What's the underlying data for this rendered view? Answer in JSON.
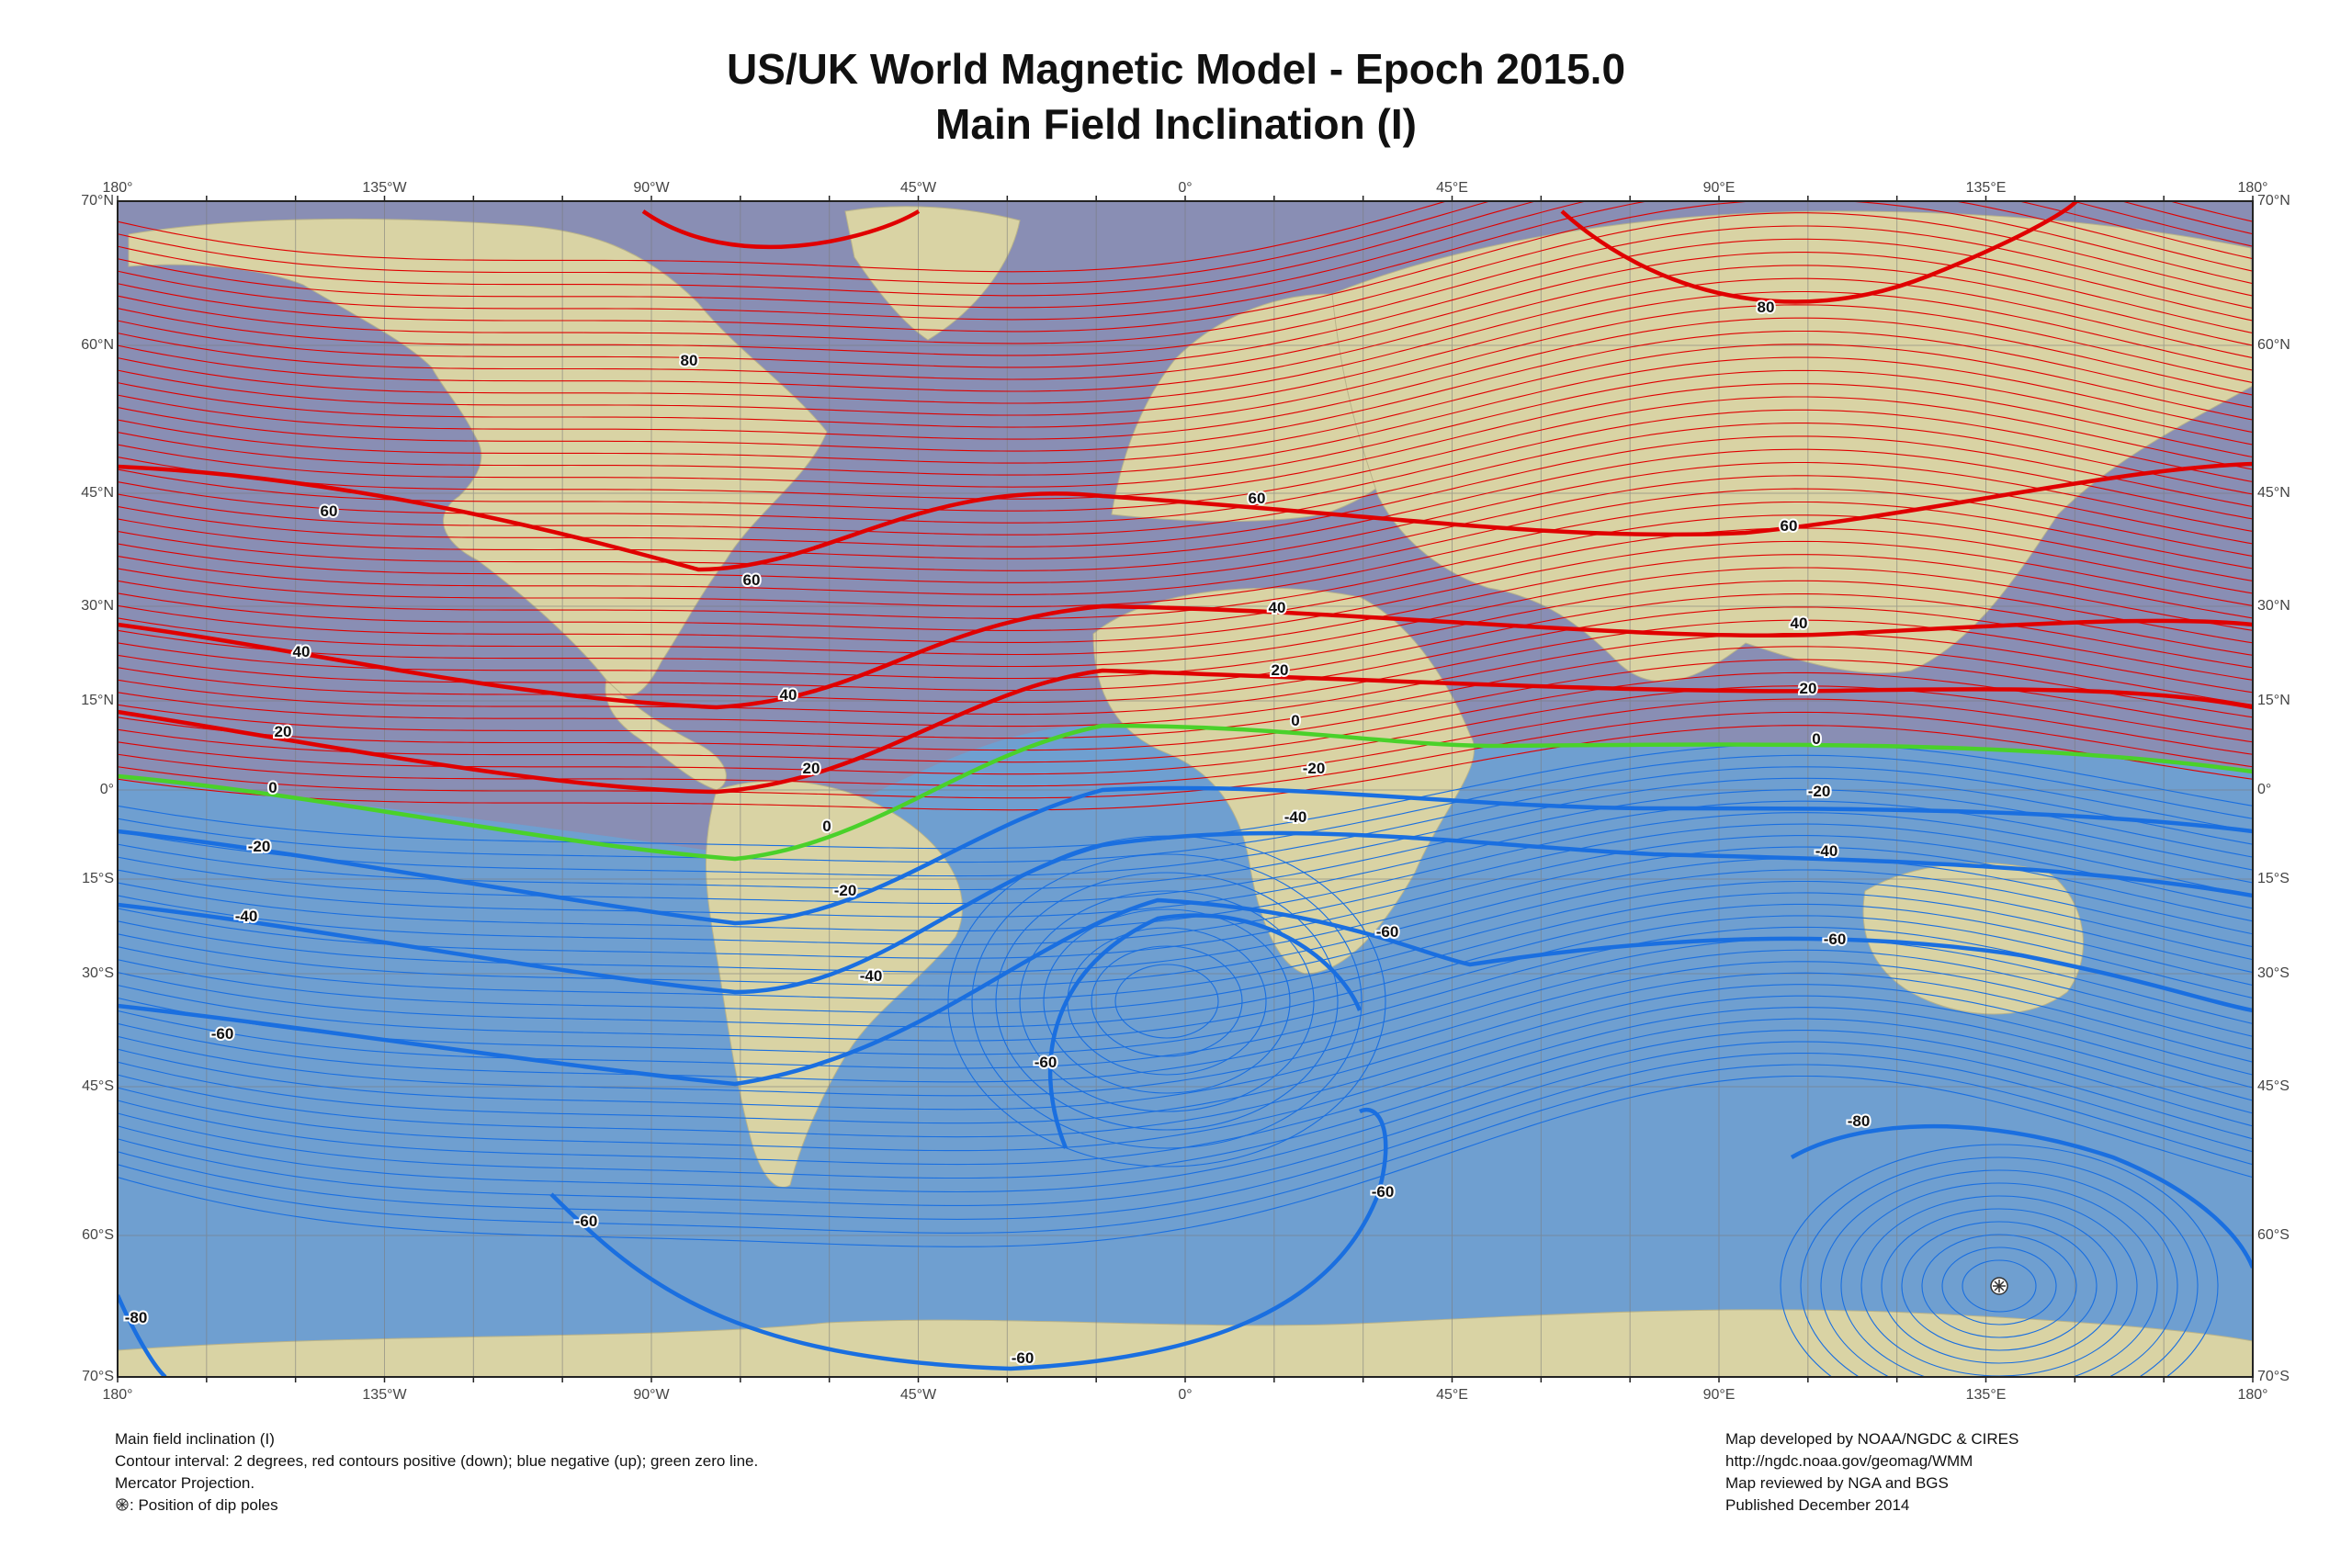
{
  "title": "US/UK World Magnetic Model - Epoch 2015.0",
  "subtitle": "Main Field Inclination (I)",
  "axes": {
    "lon_labels": [
      "180°",
      "135°W",
      "90°W",
      "45°W",
      "0°",
      "45°E",
      "90°E",
      "135°E",
      "180°"
    ],
    "lat_labels_left": [
      "70°N",
      "60°N",
      "45°N",
      "30°N",
      "15°N",
      "0°",
      "15°S",
      "30°S",
      "45°S",
      "60°S",
      "70°S"
    ],
    "lat_labels_right": [
      "70°N",
      "60°N",
      "45°N",
      "30°N",
      "15°N",
      "0°",
      "15°S",
      "30°S",
      "45°S",
      "60°S",
      "70°S"
    ]
  },
  "legend": {
    "line1": "Main field inclination (I)",
    "line2": "Contour interval: 2 degrees, red contours positive (down); blue negative (up); green zero line.",
    "line3": "Mercator Projection.",
    "dip_pole_label": ": Position of dip poles"
  },
  "credits": {
    "line1": "Map developed by NOAA/NGDC & CIRES",
    "line2": "http://ngdc.noaa.gov/geomag/WMM",
    "line3": "Map reviewed by NGA and BGS",
    "line4": "Published December 2014"
  },
  "contour_labels": [
    "80",
    "80",
    "60",
    "60",
    "60",
    "60",
    "40",
    "40",
    "40",
    "40",
    "20",
    "20",
    "20",
    "20",
    "0",
    "0",
    "0",
    "0",
    "-20",
    "-20",
    "-20",
    "-20",
    "-40",
    "-40",
    "-40",
    "-40",
    "-60",
    "-60",
    "-60",
    "-60",
    "-60",
    "-60",
    "-60",
    "-80",
    "-80"
  ],
  "colors": {
    "positive": "#e00000",
    "negative": "#1a6fe0",
    "zero": "#4ad12a",
    "ocean": "#6f9fd0",
    "land": "#d9d3a4"
  }
}
